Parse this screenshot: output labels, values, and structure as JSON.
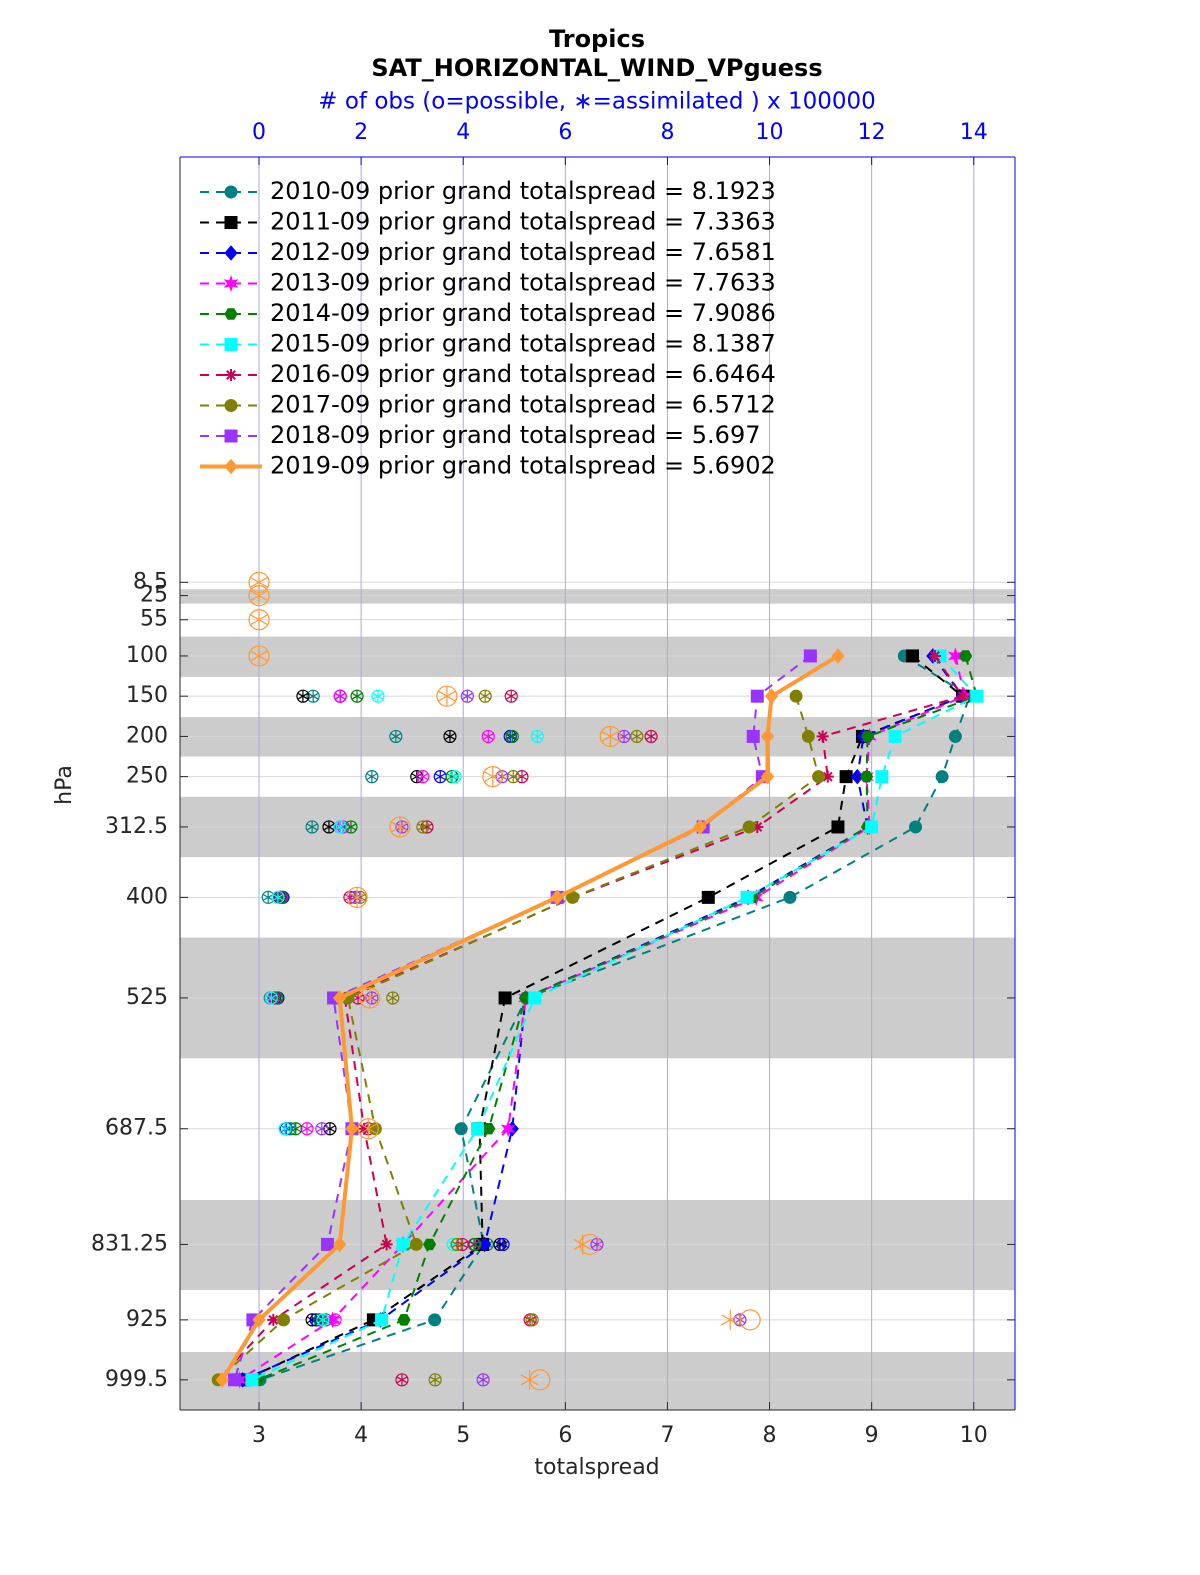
{
  "chart_data": {
    "type": "line",
    "title": "Tropics",
    "subtitle": "SAT_HORIZONTAL_WIND_VPguess",
    "x_label": "totalspread",
    "x2_label": "# of obs (o=possible, ∗=assimilated ) x 100000",
    "y_label": "hPa",
    "xlim": [
      2.226,
      10.404
    ],
    "xticks": [
      3,
      4,
      5,
      6,
      7,
      8,
      9,
      10
    ],
    "x2lim": [
      -1.548,
      14.808
    ],
    "x2ticks": [
      0,
      2,
      4,
      6,
      8,
      10,
      12,
      14
    ],
    "ylim": [
      -520,
      1037
    ],
    "y_reversed": true,
    "levels": [
      8.5,
      25,
      55,
      100,
      150,
      200,
      250,
      312.5,
      400,
      525,
      687.5,
      831.25,
      925,
      999.5
    ],
    "yticks": [
      8.5,
      25,
      55,
      100,
      150,
      200,
      250,
      312.5,
      400,
      525,
      687.5,
      831.25,
      925,
      999.5
    ],
    "shaded_layers": [
      [
        17,
        35
      ],
      [
        76,
        126
      ],
      [
        176,
        225
      ],
      [
        275,
        350
      ],
      [
        450,
        600
      ],
      [
        776,
        888
      ],
      [
        965,
        1037
      ]
    ],
    "grid": true,
    "legend": "upper left",
    "series": [
      {
        "name": "2010-09 prior grand totalspread = 8.1923",
        "color": "#008080",
        "marker": "circle",
        "line": "dashed",
        "values": [
          null,
          null,
          null,
          9.32,
          9.96,
          9.82,
          9.69,
          9.43,
          8.2,
          5.62,
          4.98,
          5.2,
          4.72,
          3.01
        ],
        "obs_possible": [
          null,
          null,
          null,
          null,
          1.06,
          2.68,
          2.21,
          1.04,
          0.18,
          0.22,
          0.61,
          4.47,
          1.31,
          null
        ],
        "obs_assimilated": [
          null,
          null,
          null,
          null,
          1.06,
          2.68,
          2.21,
          1.04,
          0.18,
          0.22,
          0.61,
          4.47,
          1.31,
          null
        ]
      },
      {
        "name": "2011-09 prior grand totalspread = 7.3363",
        "color": "#000000",
        "marker": "square",
        "line": "dashed",
        "values": [
          null,
          null,
          null,
          9.4,
          9.89,
          8.91,
          8.75,
          8.67,
          7.4,
          5.41,
          5.16,
          5.19,
          4.12,
          2.86
        ],
        "obs_possible": [
          null,
          null,
          null,
          null,
          0.86,
          3.74,
          3.09,
          1.37,
          0.41,
          0.31,
          1.39,
          4.72,
          1.04,
          null
        ],
        "obs_assimilated": [
          null,
          null,
          null,
          null,
          0.86,
          3.74,
          3.09,
          1.37,
          0.41,
          0.31,
          1.39,
          4.72,
          1.04,
          null
        ]
      },
      {
        "name": "2012-09 prior grand totalspread = 7.6581",
        "color": "#0000ff",
        "marker": "diamond",
        "line": "dashed",
        "values": [
          null,
          null,
          null,
          9.6,
          9.89,
          8.92,
          8.86,
          8.96,
          7.79,
          5.61,
          5.48,
          5.21,
          4.19,
          2.84
        ],
        "obs_possible": [
          null,
          null,
          null,
          null,
          1.59,
          4.92,
          3.55,
          1.59,
          0.47,
          0.37,
          0.53,
          4.78,
          1.12,
          null
        ],
        "obs_assimilated": [
          null,
          null,
          null,
          null,
          1.59,
          4.92,
          3.55,
          1.59,
          0.47,
          0.37,
          0.53,
          4.78,
          1.12,
          null
        ]
      },
      {
        "name": "2013-09 prior grand totalspread = 7.7633",
        "color": "#ff00ff",
        "marker": "star",
        "line": "dashed",
        "values": [
          null,
          null,
          null,
          9.82,
          9.91,
          8.98,
          8.95,
          8.98,
          7.87,
          5.61,
          5.44,
          4.41,
          3.72,
          2.81
        ],
        "obs_possible": [
          null,
          null,
          null,
          null,
          1.59,
          4.49,
          3.21,
          1.65,
          0.43,
          0.29,
          0.94,
          4.21,
          1.49,
          null
        ],
        "obs_assimilated": [
          null,
          null,
          null,
          null,
          1.59,
          4.49,
          3.21,
          1.65,
          0.43,
          0.29,
          0.94,
          4.21,
          1.49,
          null
        ]
      },
      {
        "name": "2014-09 prior grand totalspread = 7.9086",
        "color": "#008000",
        "marker": "hexagon",
        "line": "dashed",
        "values": [
          null,
          null,
          null,
          9.92,
          10.03,
          8.96,
          8.95,
          8.96,
          7.83,
          5.61,
          5.25,
          4.67,
          4.42,
          2.99
        ],
        "obs_possible": [
          null,
          null,
          null,
          null,
          1.92,
          4.96,
          3.78,
          1.8,
          0.45,
          0.35,
          0.72,
          4.23,
          1.19,
          null
        ],
        "obs_assimilated": [
          null,
          null,
          null,
          null,
          1.92,
          4.96,
          3.78,
          1.8,
          0.45,
          0.35,
          0.72,
          4.23,
          1.19,
          null
        ]
      },
      {
        "name": "2015-09 prior grand totalspread = 8.1387",
        "color": "#00ffff",
        "marker": "square",
        "line": "dashed",
        "values": [
          null,
          null,
          null,
          9.67,
          10.03,
          9.23,
          9.1,
          9.0,
          7.78,
          5.7,
          5.14,
          4.41,
          4.2,
          2.93
        ],
        "obs_possible": [
          null,
          null,
          null,
          null,
          2.33,
          5.45,
          3.84,
          1.59,
          0.37,
          0.24,
          0.51,
          3.8,
          1.25,
          null
        ],
        "obs_assimilated": [
          null,
          null,
          null,
          null,
          2.33,
          5.45,
          3.84,
          1.59,
          0.37,
          0.24,
          0.51,
          3.8,
          1.25,
          null
        ]
      },
      {
        "name": "2016-09 prior grand totalspread = 6.6464",
        "color": "#cc0055",
        "marker": "asterisk",
        "line": "dashed",
        "values": [
          null,
          null,
          null,
          9.62,
          9.89,
          8.52,
          8.57,
          7.88,
          6.08,
          3.84,
          4.03,
          4.25,
          3.14,
          2.6
        ],
        "obs_possible": [
          null,
          null,
          null,
          null,
          4.94,
          7.68,
          5.15,
          3.29,
          1.78,
          1.94,
          2.14,
          3.98,
          5.31,
          2.8
        ],
        "obs_assimilated": [
          null,
          null,
          null,
          null,
          4.94,
          7.68,
          5.15,
          3.29,
          1.78,
          1.94,
          2.14,
          3.98,
          5.31,
          2.8
        ]
      },
      {
        "name": "2017-09 prior grand totalspread = 6.5712",
        "color": "#808000",
        "marker": "circle",
        "line": "dashed",
        "values": [
          null,
          null,
          null,
          null,
          8.26,
          8.38,
          8.48,
          7.8,
          6.07,
          3.87,
          4.14,
          4.54,
          3.24,
          2.6
        ],
        "obs_possible": [
          null,
          null,
          null,
          null,
          4.43,
          7.4,
          4.98,
          3.21,
          1.98,
          2.62,
          1.82,
          3.88,
          5.35,
          3.45
        ],
        "obs_assimilated": [
          null,
          null,
          null,
          null,
          4.43,
          7.4,
          4.98,
          3.21,
          1.98,
          2.62,
          1.82,
          3.88,
          5.35,
          3.45
        ]
      },
      {
        "name": "2018-09 prior grand totalspread = 5.697",
        "color": "#9933ff",
        "marker": "square",
        "line": "dashed",
        "values": [
          null,
          null,
          null,
          8.4,
          7.88,
          7.84,
          7.93,
          7.35,
          5.92,
          3.73,
          3.91,
          3.67,
          2.94,
          2.76
        ],
        "obs_possible": [
          null,
          null,
          null,
          null,
          4.08,
          7.15,
          4.76,
          2.8,
          1.88,
          2.21,
          1.23,
          6.62,
          9.42,
          4.39
        ],
        "obs_assimilated": [
          null,
          null,
          null,
          null,
          4.08,
          7.15,
          4.76,
          2.8,
          1.88,
          2.21,
          1.23,
          6.62,
          9.42,
          4.39
        ]
      },
      {
        "name": "2019-09 prior grand totalspread = 5.6902",
        "color": "#ff9933",
        "marker": "diamond",
        "line": "solid",
        "values": [
          null,
          null,
          null,
          8.67,
          8.02,
          7.98,
          7.98,
          7.32,
          5.92,
          3.79,
          3.91,
          3.79,
          3.0,
          2.64
        ],
        "obs_possible": [
          0,
          0,
          0,
          0,
          3.68,
          6.88,
          4.58,
          2.76,
          1.92,
          2.17,
          2.14,
          6.48,
          9.62,
          5.5
        ],
        "obs_assimilated": [
          0,
          0,
          0,
          0,
          3.68,
          6.88,
          4.58,
          2.76,
          1.92,
          2.17,
          2.14,
          6.34,
          9.23,
          5.3
        ]
      }
    ]
  }
}
